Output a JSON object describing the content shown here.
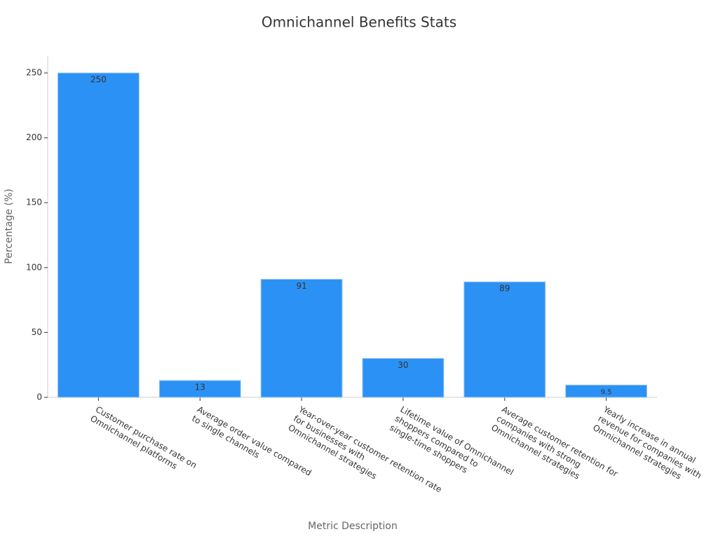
{
  "chart_data": {
    "type": "bar",
    "title": "Omnichannel Benefits Stats",
    "x_label": "Metric Description",
    "y_label": "Percentage (%)",
    "categories": [
      [
        "Customer purchase rate on",
        "Omnichannel platforms"
      ],
      [
        "Average order value compared",
        "to single channels"
      ],
      [
        "Year-over-year customer retention rate",
        "for businesses with",
        "Omnichannel strategies"
      ],
      [
        "Lifetime value of Omnichannel",
        "shoppers compared to",
        "single-time shoppers"
      ],
      [
        "Average customer retention for",
        "companies with strong",
        "Omnichannel strategies"
      ],
      [
        "Yearly increase in annual",
        "revenue for companies with",
        "Omnichannel strategies"
      ]
    ],
    "values": [
      250,
      13,
      91,
      30,
      89,
      9.5
    ],
    "color": "#2c91f5",
    "ylim": [
      0,
      263
    ],
    "yticks": [
      0,
      50,
      100,
      150,
      200,
      250
    ],
    "grid": false
  }
}
